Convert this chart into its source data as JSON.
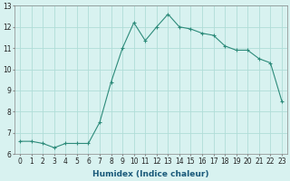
{
  "x": [
    0,
    1,
    2,
    3,
    4,
    5,
    6,
    7,
    8,
    9,
    10,
    11,
    12,
    13,
    14,
    15,
    16,
    17,
    18,
    19,
    20,
    21,
    22,
    23
  ],
  "y": [
    6.6,
    6.6,
    6.5,
    6.3,
    6.5,
    6.5,
    6.5,
    7.5,
    9.4,
    11.0,
    12.2,
    11.35,
    12.0,
    12.6,
    12.0,
    11.9,
    11.7,
    11.6,
    11.1,
    10.9,
    10.9,
    10.5,
    10.3,
    8.5
  ],
  "line_color": "#2d8b7a",
  "marker": "+",
  "marker_size": 3,
  "bg_color": "#d8f2f0",
  "grid_color": "#b0ddd8",
  "xlabel": "Humidex (Indice chaleur)",
  "ylim": [
    6,
    13
  ],
  "xlim": [
    -0.5,
    23.5
  ],
  "yticks": [
    6,
    7,
    8,
    9,
    10,
    11,
    12,
    13
  ],
  "xticks": [
    0,
    1,
    2,
    3,
    4,
    5,
    6,
    7,
    8,
    9,
    10,
    11,
    12,
    13,
    14,
    15,
    16,
    17,
    18,
    19,
    20,
    21,
    22,
    23
  ],
  "tick_fontsize": 5.5,
  "xlabel_fontsize": 6.5,
  "linewidth": 0.8,
  "marker_linewidth": 0.8
}
